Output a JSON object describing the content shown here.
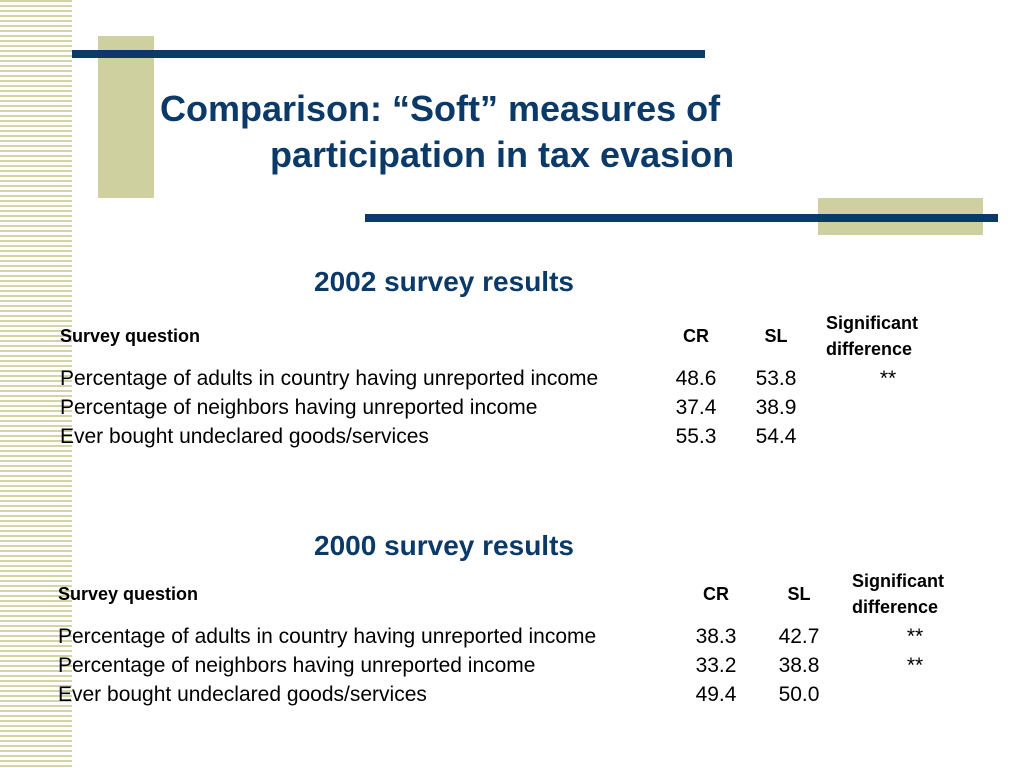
{
  "slide": {
    "title_line1": "Comparison: “Soft” measures of",
    "title_line2": "participation in tax evasion"
  },
  "tables": [
    {
      "heading": "2002 survey results",
      "columns": [
        "Survey question",
        "CR",
        "SL",
        "Significant difference"
      ],
      "rows": [
        {
          "question": "Percentage of adults in country having unreported income",
          "cr": "48.6",
          "sl": "53.8",
          "sig": "**"
        },
        {
          "question": "Percentage of neighbors having unreported income",
          "cr": "37.4",
          "sl": "38.9",
          "sig": ""
        },
        {
          "question": "Ever bought undeclared goods/services",
          "cr": "55.3",
          "sl": "54.4",
          "sig": ""
        }
      ]
    },
    {
      "heading": "2000 survey results",
      "columns": [
        "Survey question",
        "CR",
        "SL",
        "Significant difference"
      ],
      "rows": [
        {
          "question": "Percentage of adults in country having unreported income",
          "cr": "38.3",
          "sl": "42.7",
          "sig": "**"
        },
        {
          "question": "Percentage of neighbors having unreported income",
          "cr": "33.2",
          "sl": "38.8",
          "sig": "**"
        },
        {
          "question": "Ever bought undeclared goods/services",
          "cr": "49.4",
          "sl": "50.0",
          "sig": ""
        }
      ]
    }
  ]
}
